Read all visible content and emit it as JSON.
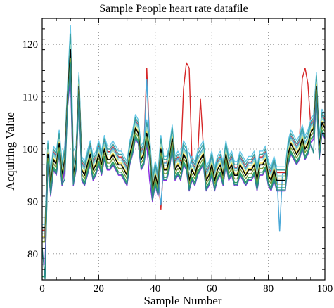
{
  "chart_data": {
    "type": "line",
    "title": "Sample People heart rate datafile",
    "xlabel": "Sample Number",
    "ylabel": "Acquiring Value",
    "xlim": [
      0,
      100
    ],
    "ylim": [
      75,
      125
    ],
    "xticks": [
      0,
      20,
      40,
      60,
      80,
      100
    ],
    "yticks": [
      80,
      90,
      100,
      110,
      120
    ],
    "grid": true,
    "legend": "none",
    "base_series": {
      "x": [
        0,
        1,
        2,
        3,
        4,
        5,
        6,
        7,
        8,
        9,
        10,
        11,
        12,
        13,
        14,
        15,
        16,
        17,
        18,
        19,
        20,
        21,
        22,
        23,
        24,
        25,
        26,
        27,
        28,
        29,
        30,
        31,
        32,
        33,
        34,
        35,
        36,
        37,
        38,
        39,
        40,
        41,
        42,
        43,
        44,
        45,
        46,
        47,
        48,
        49,
        50,
        51,
        52,
        53,
        54,
        55,
        56,
        57,
        58,
        59,
        60,
        61,
        62,
        63,
        64,
        65,
        66,
        67,
        68,
        69,
        70,
        71,
        72,
        73,
        74,
        75,
        76,
        77,
        78,
        79,
        80,
        81,
        82,
        83,
        84,
        85,
        86,
        87,
        88,
        89,
        90,
        91,
        92,
        93,
        94,
        95,
        96,
        97,
        98,
        99,
        100
      ],
      "values": [
        83,
        83,
        99,
        93,
        98,
        97,
        101,
        95,
        98,
        110,
        118,
        95,
        98,
        112,
        96,
        95,
        97,
        99,
        96,
        97,
        99,
        97,
        100,
        98,
        98,
        99,
        98,
        97,
        97,
        96,
        95,
        99,
        101,
        104,
        103,
        98,
        99,
        103,
        100,
        92,
        95,
        93,
        100,
        96,
        96,
        98,
        102,
        96,
        97,
        96,
        99,
        98,
        94,
        96,
        95,
        97,
        98,
        99,
        94,
        95,
        97,
        94,
        96,
        97,
        95,
        99,
        96,
        97,
        95,
        95,
        97,
        96,
        95,
        96,
        96,
        97,
        94,
        97,
        97,
        98,
        95,
        94,
        96,
        94,
        94,
        94,
        94,
        99,
        101,
        100,
        99,
        100,
        102,
        100,
        101,
        103,
        104,
        112,
        100,
        105,
        104
      ]
    },
    "series": [
      {
        "color": "#d62728",
        "offset": 1.5,
        "extra": [
          [
            10,
            3
          ],
          [
            37,
            11
          ],
          [
            50,
            11
          ],
          [
            51,
            17
          ],
          [
            52,
            20
          ],
          [
            56,
            10
          ],
          [
            92,
            10
          ],
          [
            93,
            14
          ],
          [
            94,
            10
          ],
          [
            42,
            -13
          ]
        ]
      },
      {
        "color": "#4aa8d8",
        "offset": 1.3,
        "extra": [
          [
            10,
            3
          ],
          [
            37,
            9
          ],
          [
            52,
            4
          ],
          [
            42,
            -12
          ],
          [
            84,
            -11
          ]
        ]
      },
      {
        "color": "#67c8e8",
        "offset": 2.6,
        "extra": [
          [
            10,
            3
          ],
          [
            11,
            2
          ]
        ]
      },
      {
        "color": "#3aa0a0",
        "offset": 2.0,
        "extra": [
          [
            10,
            2
          ]
        ]
      },
      {
        "color": "#9ad8c0",
        "offset": 0.9,
        "extra": [
          [
            10,
            1
          ]
        ]
      },
      {
        "color": "#f4e04d",
        "offset": 0.3,
        "extra": []
      },
      {
        "color": "#000000",
        "offset": 0,
        "extra": [
          [
            10,
            1
          ]
        ]
      },
      {
        "color": "#7a9a3a",
        "offset": -0.7,
        "extra": []
      },
      {
        "color": "#28a060",
        "offset": -1.4,
        "extra": [
          [
            0,
            -6
          ],
          [
            1,
            -6
          ]
        ]
      },
      {
        "color": "#8a2be2",
        "offset": -2.0,
        "extra": [
          [
            0,
            -3
          ],
          [
            1,
            -3
          ],
          [
            38,
            -4
          ],
          [
            10,
            -2
          ]
        ]
      },
      {
        "color": "#2a8a8a",
        "offset": -1.8,
        "extra": [
          [
            1,
            -6
          ],
          [
            8,
            -2
          ],
          [
            96,
            -3
          ]
        ]
      }
    ]
  }
}
